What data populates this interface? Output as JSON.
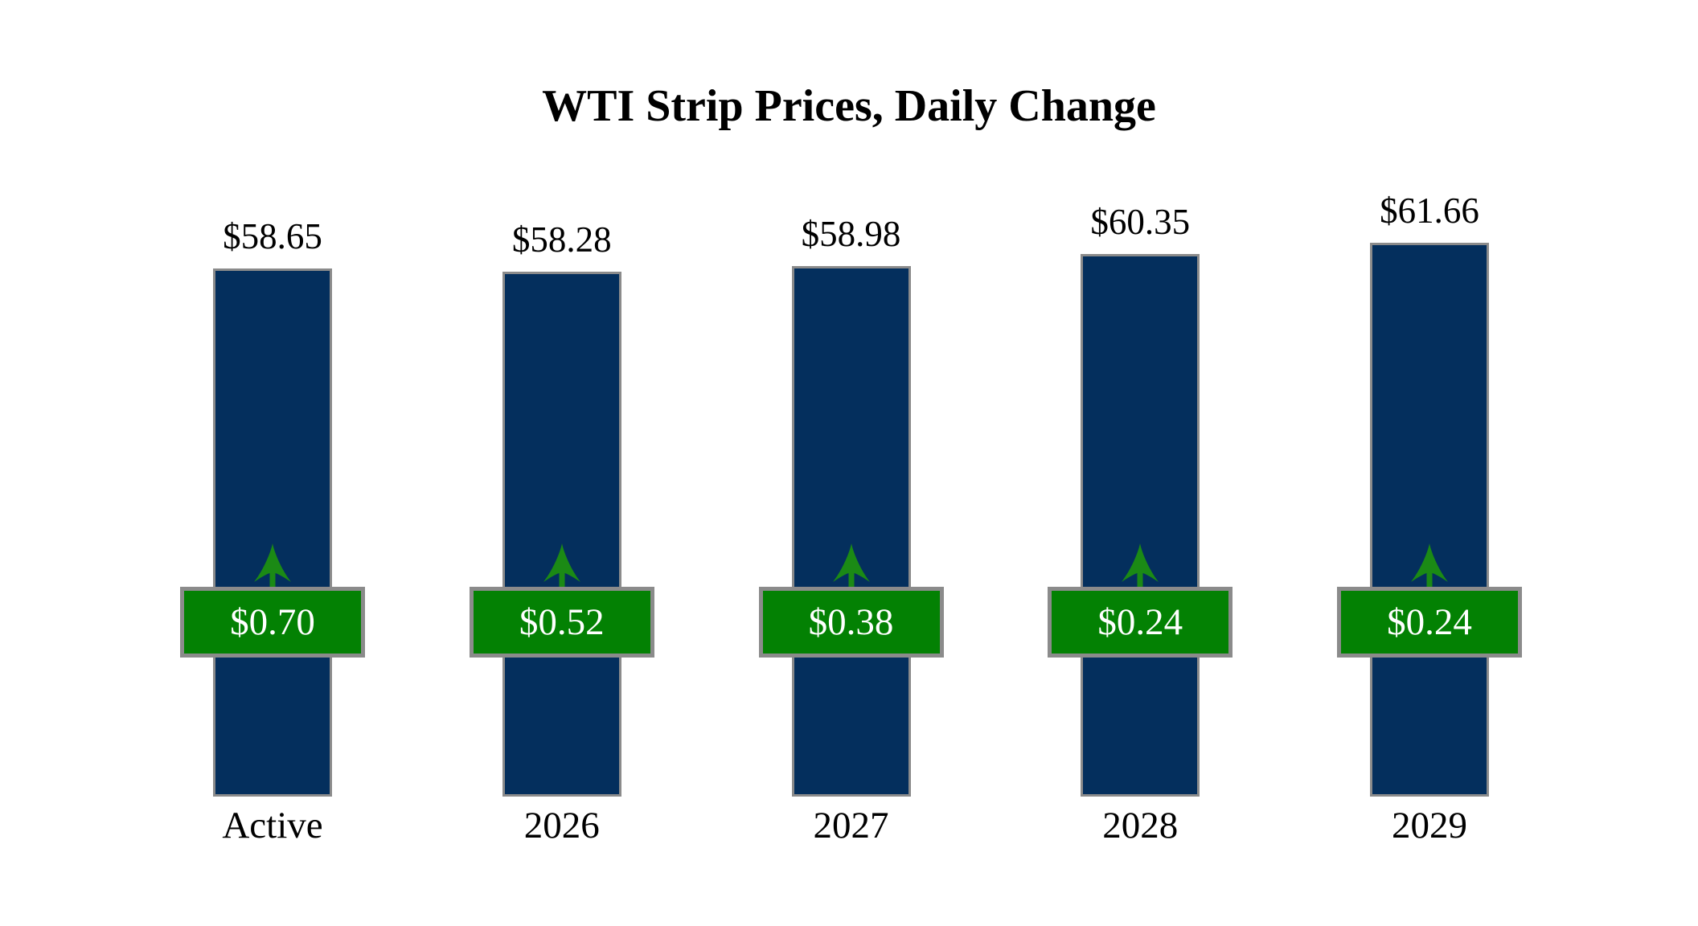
{
  "title": "WTI Strip Prices, Daily Change",
  "chart_data": {
    "type": "bar",
    "title": "WTI Strip Prices, Daily Change",
    "categories": [
      "Active",
      "2026",
      "2027",
      "2028",
      "2029"
    ],
    "series": [
      {
        "name": "Strip Price",
        "values": [
          58.65,
          58.28,
          58.98,
          60.35,
          61.66
        ],
        "labels": [
          "$58.65",
          "$58.28",
          "$58.98",
          "$60.35",
          "$61.66"
        ]
      },
      {
        "name": "Daily Change",
        "values": [
          0.7,
          0.52,
          0.38,
          0.24,
          0.24
        ],
        "labels": [
          "$0.70",
          "$0.52",
          "$0.38",
          "$0.24",
          "$0.24"
        ]
      }
    ],
    "xlabel": "",
    "ylabel": "",
    "grid": false,
    "legend": "none",
    "axes_hidden": true,
    "bar_value_position": "above",
    "change_badge_position": "overlaid-middle"
  },
  "colors": {
    "background": "#ffffff",
    "bar_fill": "#042f5d",
    "bar_border": "#8b8b8b",
    "badge_fill": "#038103",
    "badge_border": "#8b8b8b",
    "badge_text": "#ffffff",
    "arrow_green": "#1b8a15",
    "text": "#000000"
  }
}
